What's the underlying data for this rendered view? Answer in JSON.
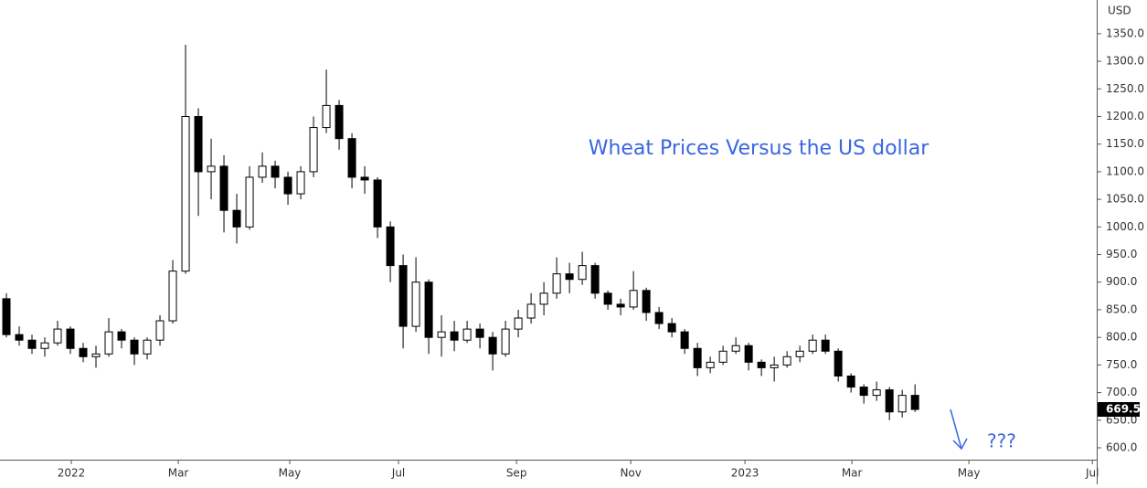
{
  "chart_data": {
    "type": "candlestick",
    "title": "Wheat Prices Versus the US dollar",
    "annotation": "???",
    "y_axis_unit": "USD",
    "up_color": "#ffffff",
    "down_color": "#000000",
    "wick_color": "#000000",
    "title_color": "#3a66e0",
    "categories": [
      null,
      null,
      null,
      null,
      null,
      null,
      null,
      null,
      null,
      null,
      null,
      null,
      null,
      null,
      null,
      null,
      null,
      null,
      null,
      null,
      null,
      null,
      null,
      null,
      null,
      null,
      null,
      null,
      null,
      null,
      null,
      null,
      null,
      null,
      null,
      null,
      null,
      null,
      null,
      null,
      null,
      null,
      null,
      null,
      null,
      null,
      null,
      null,
      null,
      null,
      null,
      null,
      null,
      null,
      null,
      null,
      null,
      null,
      null,
      null,
      null,
      null,
      null,
      null,
      null,
      null,
      null,
      null,
      null,
      null,
      null,
      null
    ],
    "open": [
      870,
      805,
      795,
      780,
      790,
      815,
      780,
      765,
      770,
      810,
      795,
      770,
      795,
      830,
      920,
      1200,
      1100,
      1110,
      1030,
      1000,
      1090,
      1110,
      1090,
      1060,
      1100,
      1180,
      1220,
      1160,
      1090,
      1085,
      1000,
      930,
      820,
      900,
      800,
      810,
      795,
      815,
      800,
      770,
      815,
      835,
      860,
      880,
      915,
      905,
      930,
      880,
      860,
      855,
      885,
      845,
      825,
      810,
      780,
      745,
      755,
      775,
      785,
      755,
      745,
      750,
      765,
      775,
      795,
      775,
      730,
      710,
      695,
      705,
      665,
      695
    ],
    "high": [
      880,
      820,
      805,
      800,
      830,
      820,
      790,
      785,
      835,
      815,
      800,
      800,
      840,
      940,
      1330,
      1215,
      1160,
      1130,
      1060,
      1110,
      1135,
      1120,
      1100,
      1110,
      1200,
      1285,
      1230,
      1170,
      1110,
      1090,
      1010,
      950,
      945,
      905,
      840,
      830,
      830,
      825,
      810,
      830,
      850,
      880,
      900,
      945,
      935,
      955,
      935,
      885,
      870,
      920,
      890,
      855,
      835,
      815,
      790,
      765,
      785,
      800,
      790,
      760,
      765,
      775,
      785,
      805,
      805,
      780,
      735,
      715,
      720,
      710,
      705,
      715
    ],
    "low": [
      800,
      785,
      770,
      765,
      785,
      770,
      755,
      745,
      765,
      780,
      750,
      760,
      785,
      825,
      915,
      1020,
      1050,
      990,
      970,
      995,
      1080,
      1070,
      1040,
      1050,
      1090,
      1170,
      1140,
      1070,
      1060,
      980,
      900,
      780,
      810,
      770,
      765,
      775,
      790,
      780,
      740,
      765,
      800,
      825,
      840,
      870,
      880,
      895,
      870,
      850,
      840,
      850,
      830,
      815,
      800,
      770,
      730,
      735,
      750,
      770,
      740,
      730,
      720,
      745,
      755,
      770,
      770,
      720,
      700,
      680,
      685,
      650,
      655,
      665
    ],
    "close": [
      805,
      795,
      780,
      790,
      815,
      780,
      765,
      770,
      810,
      795,
      770,
      795,
      830,
      920,
      1200,
      1100,
      1110,
      1030,
      1000,
      1090,
      1110,
      1090,
      1060,
      1100,
      1180,
      1220,
      1160,
      1090,
      1085,
      1000,
      930,
      820,
      900,
      800,
      810,
      795,
      815,
      800,
      770,
      815,
      835,
      860,
      880,
      915,
      905,
      930,
      880,
      860,
      855,
      885,
      845,
      825,
      810,
      780,
      745,
      755,
      775,
      785,
      755,
      745,
      750,
      765,
      775,
      795,
      775,
      730,
      710,
      695,
      705,
      665,
      695,
      669.5
    ],
    "xlim": [
      -0.5,
      85.2
    ],
    "xticks": [
      {
        "value": 5.07,
        "label": "2022"
      },
      {
        "value": 13.43,
        "label": "Mar"
      },
      {
        "value": 22.14,
        "label": "May"
      },
      {
        "value": 30.64,
        "label": "Jul"
      },
      {
        "value": 39.86,
        "label": "Sep"
      },
      {
        "value": 48.79,
        "label": "Nov"
      },
      {
        "value": 57.71,
        "label": "2023"
      },
      {
        "value": 66.07,
        "label": "Mar"
      },
      {
        "value": 75.21,
        "label": "May"
      },
      {
        "value": 84.86,
        "label": "Jul"
      }
    ],
    "ylim": [
      578.5,
      1411
    ],
    "yticks": [
      {
        "value": 600,
        "label": "600.0"
      },
      {
        "value": 650,
        "label": "650.0"
      },
      {
        "value": 700,
        "label": "700.0"
      },
      {
        "value": 750,
        "label": "750.0"
      },
      {
        "value": 800,
        "label": "800.0"
      },
      {
        "value": 850,
        "label": "850.0"
      },
      {
        "value": 900,
        "label": "900.0"
      },
      {
        "value": 950,
        "label": "950.0"
      },
      {
        "value": 1000,
        "label": "1000.0"
      },
      {
        "value": 1050,
        "label": "1050.0"
      },
      {
        "value": 1100,
        "label": "1100.0"
      },
      {
        "value": 1150,
        "label": "1150.0"
      },
      {
        "value": 1200,
        "label": "1200.0"
      },
      {
        "value": 1250,
        "label": "1250.0"
      },
      {
        "value": 1300,
        "label": "1300.0"
      },
      {
        "value": 1350,
        "label": "1350.0"
      }
    ]
  }
}
